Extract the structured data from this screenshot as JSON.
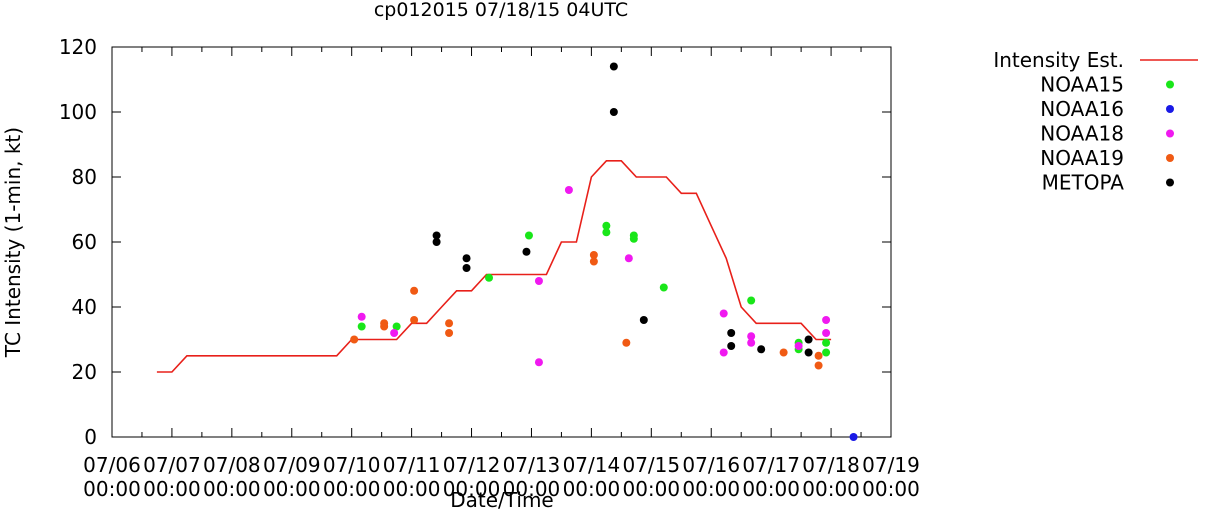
{
  "chart_data": {
    "type": "scatter",
    "title": "cp012015 07/18/15 04UTC",
    "xlabel": "Date/Time",
    "ylabel": "TC Intensity (1-min, kt)",
    "ylim": [
      0,
      120
    ],
    "yticks": [
      0,
      20,
      40,
      60,
      80,
      100,
      120
    ],
    "xlim": [
      "07/06 00:00",
      "07/19 00:00"
    ],
    "xticks": [
      {
        "date": "07/06",
        "time": "00:00"
      },
      {
        "date": "07/07",
        "time": "00:00"
      },
      {
        "date": "07/08",
        "time": "00:00"
      },
      {
        "date": "07/09",
        "time": "00:00"
      },
      {
        "date": "07/10",
        "time": "00:00"
      },
      {
        "date": "07/11",
        "time": "00:00"
      },
      {
        "date": "07/12",
        "time": "00:00"
      },
      {
        "date": "07/13",
        "time": "00:00"
      },
      {
        "date": "07/14",
        "time": "00:00"
      },
      {
        "date": "07/15",
        "time": "00:00"
      },
      {
        "date": "07/16",
        "time": "00:00"
      },
      {
        "date": "07/17",
        "time": "00:00"
      },
      {
        "date": "07/18",
        "time": "00:00"
      },
      {
        "date": "07/19",
        "time": "00:00"
      }
    ],
    "legend_position": "right",
    "grid": false,
    "series": [
      {
        "name": "Intensity Est.",
        "kind": "line",
        "color": "#e8201a",
        "points": [
          [
            "07/06 18:00",
            20
          ],
          [
            "07/07 00:00",
            20
          ],
          [
            "07/07 06:00",
            25
          ],
          [
            "07/07 12:00",
            25
          ],
          [
            "07/08 00:00",
            25
          ],
          [
            "07/08 12:00",
            25
          ],
          [
            "07/09 00:00",
            25
          ],
          [
            "07/09 12:00",
            25
          ],
          [
            "07/09 18:00",
            25
          ],
          [
            "07/10 00:00",
            30
          ],
          [
            "07/10 06:00",
            30
          ],
          [
            "07/10 12:00",
            30
          ],
          [
            "07/10 18:00",
            30
          ],
          [
            "07/11 00:00",
            35
          ],
          [
            "07/11 06:00",
            35
          ],
          [
            "07/11 12:00",
            40
          ],
          [
            "07/11 18:00",
            45
          ],
          [
            "07/12 00:00",
            45
          ],
          [
            "07/12 06:00",
            50
          ],
          [
            "07/12 12:00",
            50
          ],
          [
            "07/12 18:00",
            50
          ],
          [
            "07/13 00:00",
            50
          ],
          [
            "07/13 06:00",
            50
          ],
          [
            "07/13 12:00",
            60
          ],
          [
            "07/13 18:00",
            60
          ],
          [
            "07/14 00:00",
            80
          ],
          [
            "07/14 06:00",
            85
          ],
          [
            "07/14 12:00",
            85
          ],
          [
            "07/14 18:00",
            80
          ],
          [
            "07/15 00:00",
            80
          ],
          [
            "07/15 06:00",
            80
          ],
          [
            "07/15 12:00",
            75
          ],
          [
            "07/15 18:00",
            75
          ],
          [
            "07/16 00:00",
            65
          ],
          [
            "07/16 06:00",
            55
          ],
          [
            "07/16 12:00",
            40
          ],
          [
            "07/16 18:00",
            35
          ],
          [
            "07/17 00:00",
            35
          ],
          [
            "07/17 06:00",
            35
          ],
          [
            "07/17 12:00",
            35
          ],
          [
            "07/17 18:00",
            30
          ],
          [
            "07/18 00:00",
            30
          ]
        ]
      },
      {
        "name": "NOAA15",
        "kind": "points",
        "color": "#19e619",
        "points": [
          [
            "07/10 04:00",
            34
          ],
          [
            "07/10 18:00",
            34
          ],
          [
            "07/12 07:00",
            49
          ],
          [
            "07/12 23:00",
            62
          ],
          [
            "07/14 06:00",
            65
          ],
          [
            "07/14 06:00",
            63
          ],
          [
            "07/14 17:00",
            62
          ],
          [
            "07/14 17:00",
            61
          ],
          [
            "07/15 05:00",
            46
          ],
          [
            "07/16 16:00",
            42
          ],
          [
            "07/17 11:00",
            29
          ],
          [
            "07/17 11:00",
            27
          ],
          [
            "07/17 22:00",
            29
          ],
          [
            "07/17 22:00",
            26
          ]
        ]
      },
      {
        "name": "NOAA16",
        "kind": "points",
        "color": "#1a1ae6",
        "points": [
          [
            "07/18 09:00",
            0
          ]
        ]
      },
      {
        "name": "NOAA18",
        "kind": "points",
        "color": "#f019f0",
        "points": [
          [
            "07/10 04:00",
            37
          ],
          [
            "07/10 17:00",
            32
          ],
          [
            "07/13 03:00",
            48
          ],
          [
            "07/13 03:00",
            23
          ],
          [
            "07/13 15:00",
            76
          ],
          [
            "07/14 15:00",
            55
          ],
          [
            "07/16 05:00",
            38
          ],
          [
            "07/16 05:00",
            26
          ],
          [
            "07/16 16:00",
            31
          ],
          [
            "07/16 16:00",
            29
          ],
          [
            "07/17 11:00",
            28
          ],
          [
            "07/17 22:00",
            36
          ],
          [
            "07/17 22:00",
            32
          ]
        ]
      },
      {
        "name": "NOAA19",
        "kind": "points",
        "color": "#f05a14",
        "points": [
          [
            "07/10 01:00",
            30
          ],
          [
            "07/10 13:00",
            35
          ],
          [
            "07/10 13:00",
            34
          ],
          [
            "07/11 01:00",
            45
          ],
          [
            "07/11 01:00",
            36
          ],
          [
            "07/11 15:00",
            35
          ],
          [
            "07/11 15:00",
            32
          ],
          [
            "07/14 01:00",
            56
          ],
          [
            "07/14 01:00",
            54
          ],
          [
            "07/14 14:00",
            29
          ],
          [
            "07/17 05:00",
            26
          ],
          [
            "07/17 19:00",
            25
          ],
          [
            "07/17 19:00",
            22
          ]
        ]
      },
      {
        "name": "METOPA",
        "kind": "points",
        "color": "#000000",
        "points": [
          [
            "07/11 10:00",
            62
          ],
          [
            "07/11 10:00",
            60
          ],
          [
            "07/11 22:00",
            55
          ],
          [
            "07/11 22:00",
            52
          ],
          [
            "07/12 22:00",
            57
          ],
          [
            "07/14 09:00",
            114
          ],
          [
            "07/14 09:00",
            100
          ],
          [
            "07/14 21:00",
            36
          ],
          [
            "07/16 08:00",
            32
          ],
          [
            "07/16 08:00",
            28
          ],
          [
            "07/16 20:00",
            27
          ],
          [
            "07/17 15:00",
            30
          ],
          [
            "07/17 15:00",
            26
          ]
        ]
      }
    ]
  }
}
